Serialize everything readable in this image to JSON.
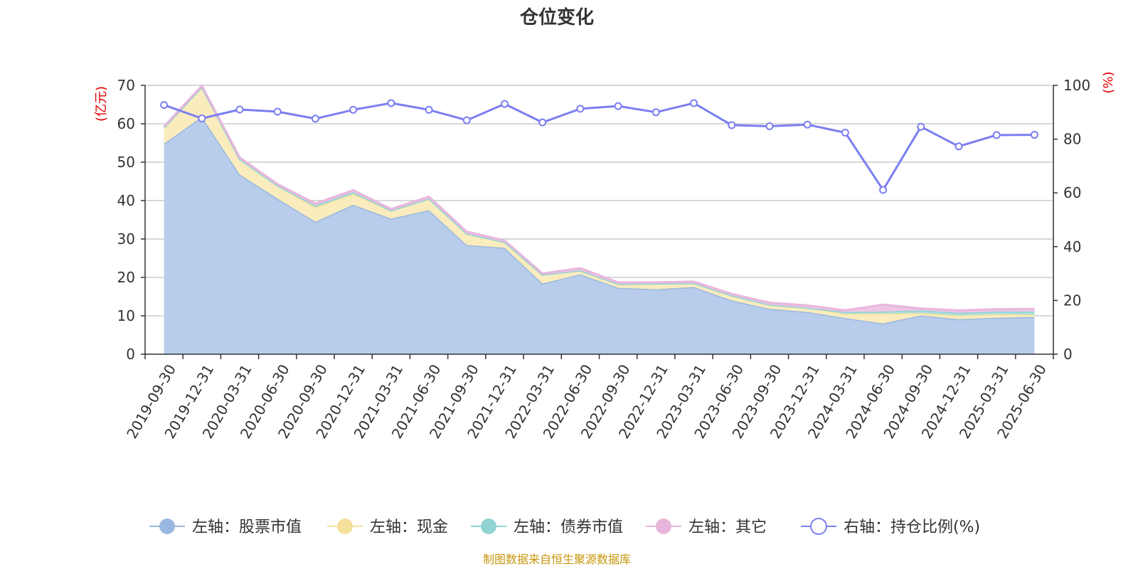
{
  "chart_data": {
    "type": "area",
    "title": "仓位变化",
    "left_axis_unit": "(亿元)",
    "right_axis_unit": "(%)",
    "left_ylim": [
      0,
      70
    ],
    "left_ticks": [
      0,
      10,
      20,
      30,
      40,
      50,
      60,
      70
    ],
    "right_ylim": [
      0,
      100
    ],
    "right_ticks": [
      0,
      20,
      40,
      60,
      80,
      100
    ],
    "grid": true,
    "legend_position": "bottom",
    "categories": [
      "2019-09-30",
      "2019-12-31",
      "2020-03-31",
      "2020-06-30",
      "2020-09-30",
      "2020-12-31",
      "2021-03-31",
      "2021-06-30",
      "2021-09-30",
      "2021-12-31",
      "2022-03-31",
      "2022-06-30",
      "2022-09-30",
      "2022-12-31",
      "2023-03-31",
      "2023-06-30",
      "2023-09-30",
      "2023-12-31",
      "2024-03-31",
      "2024-06-30",
      "2024-09-30",
      "2024-12-31",
      "2025-03-31",
      "2025-06-30"
    ],
    "series": [
      {
        "name": "左轴：股票市值",
        "axis": "left",
        "kind": "stacked-area",
        "color": "#9ab7e0",
        "fill": "#b8cdeb",
        "values": [
          54.8,
          61.8,
          46.8,
          40.5,
          34.5,
          38.9,
          35.3,
          37.5,
          28.4,
          27.7,
          18.4,
          20.8,
          17.3,
          16.9,
          17.5,
          14.0,
          11.8,
          11.0,
          9.4,
          8.0,
          10.1,
          9.1,
          9.5,
          9.7
        ]
      },
      {
        "name": "左轴：现金",
        "axis": "left",
        "kind": "stacked-area",
        "color": "#f5e09c",
        "fill": "#faecbd",
        "values": [
          4.2,
          7.8,
          4.0,
          3.4,
          3.8,
          2.8,
          2.1,
          3.0,
          3.0,
          1.5,
          2.3,
          1.0,
          1.0,
          1.5,
          1.0,
          1.3,
          1.1,
          1.1,
          1.1,
          2.6,
          0.6,
          1.0,
          0.9,
          0.6
        ]
      },
      {
        "name": "左轴：债券市值",
        "axis": "left",
        "kind": "stacked-area",
        "color": "#8fd3d3",
        "fill": "#aee0e0",
        "values": [
          0,
          0,
          0,
          0,
          0.4,
          0.5,
          0,
          0,
          0,
          0,
          0,
          0,
          0,
          0,
          0,
          0,
          0,
          0,
          0.5,
          0.5,
          0.7,
          0.7,
          0.7,
          0.8
        ]
      },
      {
        "name": "左轴：其它",
        "axis": "left",
        "kind": "stacked-area",
        "color": "#e8b6dc",
        "fill": "#eec6e4",
        "values": [
          0.3,
          0.3,
          0.4,
          0.4,
          0.5,
          0.5,
          0.4,
          0.5,
          0.5,
          0.4,
          0.3,
          0.6,
          0.4,
          0.3,
          0.4,
          0.4,
          0.5,
          0.6,
          0.4,
          1.8,
          0.5,
          0.6,
          0.6,
          0.7
        ]
      },
      {
        "name": "右轴：持仓比例(%)",
        "axis": "right",
        "kind": "line",
        "color": "#7b7ff0",
        "values": [
          92.7,
          87.7,
          91.0,
          90.2,
          87.6,
          90.9,
          93.4,
          90.9,
          87.0,
          93.1,
          86.2,
          91.3,
          92.3,
          90.0,
          93.4,
          85.2,
          84.8,
          85.4,
          82.4,
          61.1,
          84.6,
          77.3,
          81.5,
          81.6
        ]
      }
    ]
  },
  "source_text": "制图数据来自恒生聚源数据库"
}
